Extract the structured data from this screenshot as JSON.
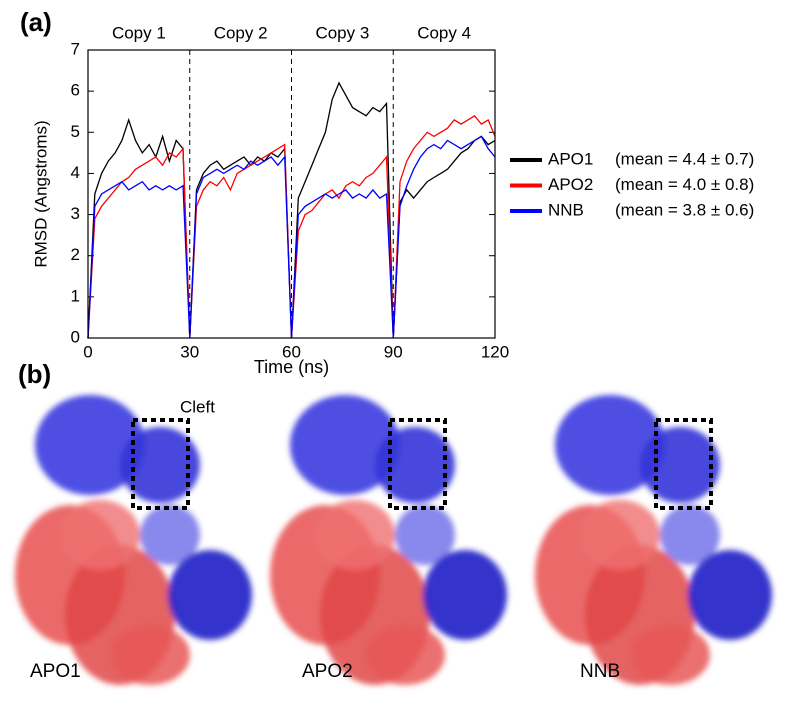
{
  "panel_a_label": "(a)",
  "chart_data": {
    "type": "line",
    "xlabel": "Time (ns)",
    "ylabel": "RMSD (Angstroms)",
    "xlim": [
      0,
      120
    ],
    "xticks": [
      0,
      30,
      60,
      90,
      120
    ],
    "ylim": [
      0,
      7
    ],
    "yticks": [
      0,
      1,
      2,
      3,
      4,
      5,
      6,
      7
    ],
    "sections": [
      "Copy 1",
      "Copy 2",
      "Copy 3",
      "Copy 4"
    ],
    "dividers": [
      30,
      60,
      90
    ],
    "x": [
      0,
      2,
      4,
      6,
      8,
      10,
      12,
      14,
      16,
      18,
      20,
      22,
      24,
      26,
      28,
      30,
      32,
      34,
      36,
      38,
      40,
      42,
      44,
      46,
      48,
      50,
      52,
      54,
      56,
      58,
      60,
      62,
      64,
      66,
      68,
      70,
      72,
      74,
      76,
      78,
      80,
      82,
      84,
      86,
      88,
      90,
      92,
      94,
      96,
      98,
      100,
      102,
      104,
      106,
      108,
      110,
      112,
      114,
      116,
      118,
      120
    ],
    "series": [
      {
        "name": "APO1",
        "note": "(mean = 4.4 ± 0.7)",
        "color": "#000000",
        "values": [
          0,
          3.5,
          4.0,
          4.3,
          4.5,
          4.8,
          5.3,
          4.8,
          4.5,
          4.7,
          4.4,
          4.9,
          4.3,
          4.8,
          4.6,
          0,
          3.6,
          4.0,
          4.2,
          4.3,
          4.1,
          4.2,
          4.3,
          4.4,
          4.2,
          4.4,
          4.3,
          4.5,
          4.4,
          4.6,
          0,
          3.4,
          3.8,
          4.2,
          4.6,
          5.0,
          5.8,
          6.2,
          5.9,
          5.6,
          5.5,
          5.4,
          5.6,
          5.5,
          5.7,
          0,
          3.3,
          3.6,
          3.4,
          3.6,
          3.8,
          3.9,
          4.0,
          4.1,
          4.3,
          4.5,
          4.6,
          4.8,
          4.9,
          4.7,
          4.8
        ]
      },
      {
        "name": "APO2",
        "note": "(mean = 4.0 ± 0.8)",
        "color": "#ff0000",
        "values": [
          0,
          2.9,
          3.2,
          3.4,
          3.6,
          3.8,
          3.9,
          4.1,
          4.2,
          4.3,
          4.4,
          4.2,
          4.5,
          4.4,
          4.6,
          0,
          3.2,
          3.6,
          3.8,
          3.7,
          3.9,
          3.6,
          4.0,
          4.1,
          4.2,
          4.3,
          4.4,
          4.5,
          4.6,
          4.7,
          0,
          2.6,
          3.0,
          3.1,
          3.3,
          3.5,
          3.6,
          3.4,
          3.7,
          3.8,
          3.7,
          3.9,
          4.0,
          4.2,
          4.4,
          0,
          3.8,
          4.3,
          4.6,
          4.8,
          5.0,
          4.9,
          5.0,
          5.1,
          5.3,
          5.2,
          5.3,
          5.4,
          5.2,
          5.3,
          4.9
        ]
      },
      {
        "name": "NNB",
        "note": "(mean = 3.8 ± 0.6)",
        "color": "#0000ff",
        "values": [
          0,
          3.2,
          3.5,
          3.6,
          3.7,
          3.8,
          3.6,
          3.7,
          3.8,
          3.6,
          3.7,
          3.6,
          3.7,
          3.6,
          3.7,
          0,
          3.5,
          3.9,
          4.0,
          4.1,
          4.0,
          4.1,
          4.2,
          4.1,
          4.3,
          4.2,
          4.3,
          4.4,
          4.2,
          4.4,
          0,
          3.0,
          3.2,
          3.3,
          3.4,
          3.5,
          3.4,
          3.5,
          3.6,
          3.4,
          3.5,
          3.4,
          3.6,
          3.4,
          3.5,
          0,
          3.2,
          3.7,
          4.1,
          4.4,
          4.6,
          4.7,
          4.6,
          4.8,
          4.7,
          4.6,
          4.7,
          4.8,
          4.9,
          4.6,
          4.4
        ]
      }
    ]
  },
  "panel_b": {
    "label": "(b)",
    "annotation": "Cleft",
    "structures": [
      "APO1",
      "APO2",
      "NNB"
    ]
  }
}
